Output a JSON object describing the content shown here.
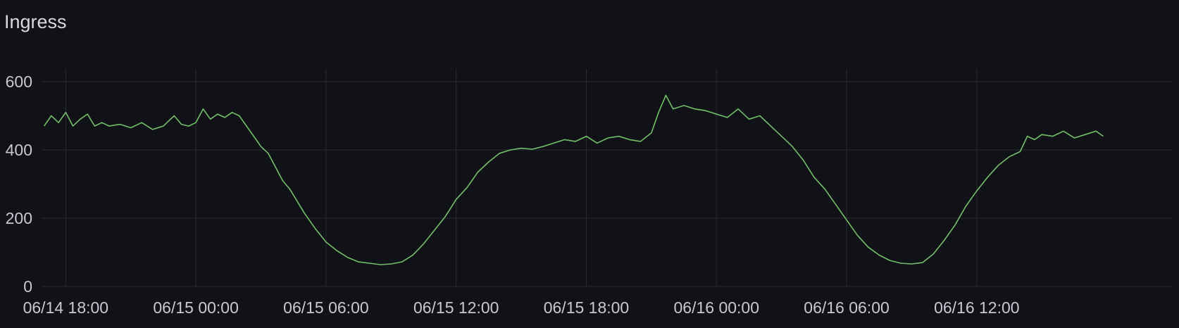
{
  "panel": {
    "title": "Ingress"
  },
  "colors": {
    "background": "#111217",
    "grid": "#2a2b33",
    "series": "#73bf69",
    "text": "#c7c8d2"
  },
  "chart_data": {
    "type": "line",
    "title": "Ingress",
    "xlabel": "",
    "ylabel": "",
    "ylim": [
      0,
      600
    ],
    "grid": true,
    "legend": "none",
    "yticks": [
      {
        "value": 0,
        "label": "0"
      },
      {
        "value": 200,
        "label": "200"
      },
      {
        "value": 400,
        "label": "400"
      },
      {
        "value": 600,
        "label": "600"
      }
    ],
    "xrange": [
      "06/14 16:55",
      "06/16 21:00"
    ],
    "xticks": [
      {
        "time": "06/14 18:00",
        "label": "06/14 18:00"
      },
      {
        "time": "06/15 00:00",
        "label": "06/15 00:00"
      },
      {
        "time": "06/15 06:00",
        "label": "06/15 06:00"
      },
      {
        "time": "06/15 12:00",
        "label": "06/15 12:00"
      },
      {
        "time": "06/15 18:00",
        "label": "06/15 18:00"
      },
      {
        "time": "06/16 00:00",
        "label": "06/16 00:00"
      },
      {
        "time": "06/16 06:00",
        "label": "06/16 06:00"
      },
      {
        "time": "06/16 12:00",
        "label": "06/16 12:00"
      }
    ],
    "series": [
      {
        "name": "",
        "color": "#73bf69",
        "points": [
          [
            "06/14 17:00",
            470
          ],
          [
            "06/14 17:20",
            500
          ],
          [
            "06/14 17:40",
            480
          ],
          [
            "06/14 18:00",
            510
          ],
          [
            "06/14 18:20",
            470
          ],
          [
            "06/14 18:40",
            490
          ],
          [
            "06/14 19:00",
            505
          ],
          [
            "06/14 19:20",
            470
          ],
          [
            "06/14 19:40",
            480
          ],
          [
            "06/14 20:00",
            470
          ],
          [
            "06/14 20:30",
            475
          ],
          [
            "06/14 21:00",
            465
          ],
          [
            "06/14 21:30",
            480
          ],
          [
            "06/14 22:00",
            460
          ],
          [
            "06/14 22:30",
            470
          ],
          [
            "06/14 23:00",
            500
          ],
          [
            "06/14 23:20",
            475
          ],
          [
            "06/14 23:40",
            470
          ],
          [
            "06/15 00:00",
            480
          ],
          [
            "06/15 00:20",
            520
          ],
          [
            "06/15 00:40",
            490
          ],
          [
            "06/15 01:00",
            505
          ],
          [
            "06/15 01:20",
            495
          ],
          [
            "06/15 01:40",
            510
          ],
          [
            "06/15 02:00",
            500
          ],
          [
            "06/15 02:20",
            470
          ],
          [
            "06/15 02:40",
            440
          ],
          [
            "06/15 03:00",
            410
          ],
          [
            "06/15 03:20",
            390
          ],
          [
            "06/15 03:40",
            350
          ],
          [
            "06/15 04:00",
            310
          ],
          [
            "06/15 04:20",
            285
          ],
          [
            "06/15 04:40",
            250
          ],
          [
            "06/15 05:00",
            215
          ],
          [
            "06/15 05:30",
            170
          ],
          [
            "06/15 06:00",
            130
          ],
          [
            "06/15 06:30",
            105
          ],
          [
            "06/15 07:00",
            85
          ],
          [
            "06/15 07:30",
            72
          ],
          [
            "06/15 08:00",
            68
          ],
          [
            "06/15 08:30",
            64
          ],
          [
            "06/15 09:00",
            66
          ],
          [
            "06/15 09:30",
            72
          ],
          [
            "06/15 10:00",
            92
          ],
          [
            "06/15 10:30",
            125
          ],
          [
            "06/15 11:00",
            165
          ],
          [
            "06/15 11:30",
            205
          ],
          [
            "06/15 12:00",
            255
          ],
          [
            "06/15 12:30",
            290
          ],
          [
            "06/15 13:00",
            335
          ],
          [
            "06/15 13:30",
            365
          ],
          [
            "06/15 14:00",
            390
          ],
          [
            "06/15 14:30",
            400
          ],
          [
            "06/15 15:00",
            405
          ],
          [
            "06/15 15:30",
            402
          ],
          [
            "06/15 16:00",
            410
          ],
          [
            "06/15 16:30",
            420
          ],
          [
            "06/15 17:00",
            430
          ],
          [
            "06/15 17:30",
            425
          ],
          [
            "06/15 18:00",
            440
          ],
          [
            "06/15 18:30",
            420
          ],
          [
            "06/15 19:00",
            435
          ],
          [
            "06/15 19:30",
            440
          ],
          [
            "06/15 20:00",
            430
          ],
          [
            "06/15 20:30",
            425
          ],
          [
            "06/15 21:00",
            450
          ],
          [
            "06/15 21:20",
            510
          ],
          [
            "06/15 21:40",
            560
          ],
          [
            "06/15 22:00",
            520
          ],
          [
            "06/15 22:30",
            530
          ],
          [
            "06/15 23:00",
            520
          ],
          [
            "06/15 23:30",
            515
          ],
          [
            "06/16 00:00",
            505
          ],
          [
            "06/16 00:30",
            495
          ],
          [
            "06/16 01:00",
            520
          ],
          [
            "06/16 01:30",
            490
          ],
          [
            "06/16 02:00",
            500
          ],
          [
            "06/16 02:30",
            470
          ],
          [
            "06/16 03:00",
            440
          ],
          [
            "06/16 03:30",
            410
          ],
          [
            "06/16 04:00",
            370
          ],
          [
            "06/16 04:30",
            320
          ],
          [
            "06/16 05:00",
            285
          ],
          [
            "06/16 05:30",
            240
          ],
          [
            "06/16 06:00",
            195
          ],
          [
            "06/16 06:30",
            150
          ],
          [
            "06/16 07:00",
            115
          ],
          [
            "06/16 07:30",
            92
          ],
          [
            "06/16 08:00",
            76
          ],
          [
            "06/16 08:30",
            68
          ],
          [
            "06/16 09:00",
            66
          ],
          [
            "06/16 09:30",
            70
          ],
          [
            "06/16 10:00",
            95
          ],
          [
            "06/16 10:30",
            135
          ],
          [
            "06/16 11:00",
            180
          ],
          [
            "06/16 11:30",
            235
          ],
          [
            "06/16 12:00",
            280
          ],
          [
            "06/16 12:30",
            320
          ],
          [
            "06/16 13:00",
            355
          ],
          [
            "06/16 13:30",
            380
          ],
          [
            "06/16 14:00",
            395
          ],
          [
            "06/16 14:20",
            440
          ],
          [
            "06/16 14:40",
            430
          ],
          [
            "06/16 15:00",
            445
          ],
          [
            "06/16 15:30",
            440
          ],
          [
            "06/16 16:00",
            455
          ],
          [
            "06/16 16:30",
            435
          ],
          [
            "06/16 17:00",
            445
          ],
          [
            "06/16 17:30",
            455
          ],
          [
            "06/16 17:50",
            440
          ]
        ]
      }
    ]
  }
}
